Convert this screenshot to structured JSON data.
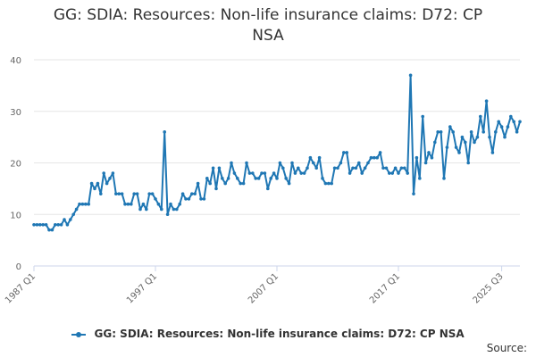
{
  "chart_data": {
    "type": "line",
    "title_line1": "GG: SDIA: Resources: Non-life insurance claims: D72: CP",
    "title_line2": "NSA",
    "series_name": "GG: SDIA: Resources: Non-life insurance claims: D72: CP NSA",
    "color": "#1f77b4",
    "x_start_label": "1987 Q1",
    "x_tick_labels": [
      "1987 Q1",
      "1997 Q1",
      "2007 Q1",
      "2017 Q1",
      "2025 Q3"
    ],
    "x_tick_indices": [
      0,
      40,
      80,
      120,
      154
    ],
    "y_ticks": [
      0,
      10,
      20,
      30,
      40
    ],
    "ylim": [
      0,
      40
    ],
    "grid": true,
    "legend_position": "bottom",
    "values": [
      8,
      8,
      8,
      8,
      8,
      7,
      7,
      8,
      8,
      8,
      9,
      8,
      9,
      10,
      11,
      12,
      12,
      12,
      12,
      16,
      15,
      16,
      14,
      18,
      16,
      17,
      18,
      14,
      14,
      14,
      12,
      12,
      12,
      14,
      14,
      11,
      12,
      11,
      14,
      14,
      13,
      12,
      11,
      26,
      10,
      12,
      11,
      11,
      12,
      14,
      13,
      13,
      14,
      14,
      16,
      13,
      13,
      17,
      16,
      19,
      15,
      19,
      17,
      16,
      17,
      20,
      18,
      17,
      16,
      16,
      20,
      18,
      18,
      17,
      17,
      18,
      18,
      15,
      17,
      18,
      17,
      20,
      19,
      17,
      16,
      20,
      18,
      19,
      18,
      18,
      19,
      21,
      20,
      19,
      21,
      17,
      16,
      16,
      16,
      19,
      19,
      20,
      22,
      22,
      18,
      19,
      19,
      20,
      18,
      19,
      20,
      21,
      21,
      21,
      22,
      19,
      19,
      18,
      18,
      19,
      18,
      19,
      19,
      18,
      37,
      14,
      21,
      17,
      29,
      20,
      22,
      21,
      24,
      26,
      26,
      17,
      23,
      27,
      26,
      23,
      22,
      25,
      24,
      20,
      26,
      24,
      25,
      29,
      26,
      32,
      25,
      22,
      26,
      28,
      27,
      25,
      27,
      29,
      28,
      26,
      28
    ]
  },
  "footer": {
    "source_label": "Source:"
  }
}
